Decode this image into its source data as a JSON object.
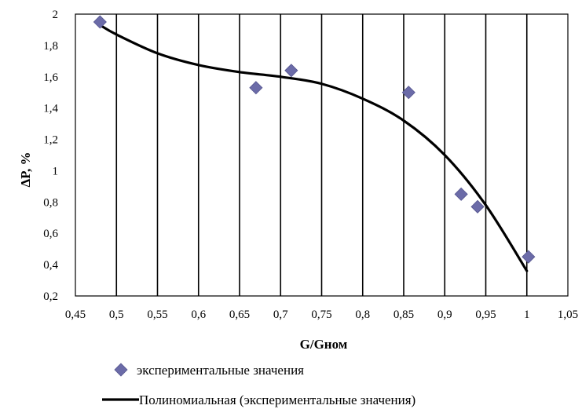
{
  "chart_data": {
    "type": "scatter",
    "xlabel": "G/Gном",
    "ylabel": "ΔP, %",
    "xlim": [
      0.45,
      1.05
    ],
    "ylim": [
      0.2,
      2.0
    ],
    "x_ticks": [
      0.45,
      0.5,
      0.55,
      0.6,
      0.65,
      0.7,
      0.75,
      0.8,
      0.85,
      0.9,
      0.95,
      1.0,
      1.05
    ],
    "x_tick_labels": [
      "0,45",
      "0,5",
      "0,55",
      "0,6",
      "0,65",
      "0,7",
      "0,75",
      "0,8",
      "0,85",
      "0,9",
      "0,95",
      "1",
      "1,05"
    ],
    "y_ticks": [
      0.2,
      0.4,
      0.6,
      0.8,
      1.0,
      1.2,
      1.4,
      1.6,
      1.8,
      2.0
    ],
    "y_tick_labels": [
      "0,2",
      "0,4",
      "0,6",
      "0,8",
      "1",
      "1,2",
      "1,4",
      "1,6",
      "1,8",
      "2"
    ],
    "grid": "vertical major gridlines",
    "legend_position": "bottom",
    "series": [
      {
        "name": "экспериментальные значения",
        "kind": "scatter",
        "marker": "diamond",
        "color": "#6b6ba8",
        "x": [
          0.48,
          0.67,
          0.713,
          0.856,
          0.92,
          0.94,
          1.002
        ],
        "y": [
          1.95,
          1.53,
          1.64,
          1.5,
          0.85,
          0.77,
          0.45
        ]
      },
      {
        "name": "Полиномиальная (экспериментальные значения)",
        "kind": "line",
        "color": "#000000",
        "x": [
          0.48,
          0.5,
          0.55,
          0.6,
          0.65,
          0.7,
          0.75,
          0.8,
          0.85,
          0.9,
          0.95,
          1.0
        ],
        "y": [
          1.93,
          1.87,
          1.75,
          1.675,
          1.63,
          1.6,
          1.555,
          1.46,
          1.32,
          1.1,
          0.78,
          0.36
        ]
      }
    ]
  }
}
